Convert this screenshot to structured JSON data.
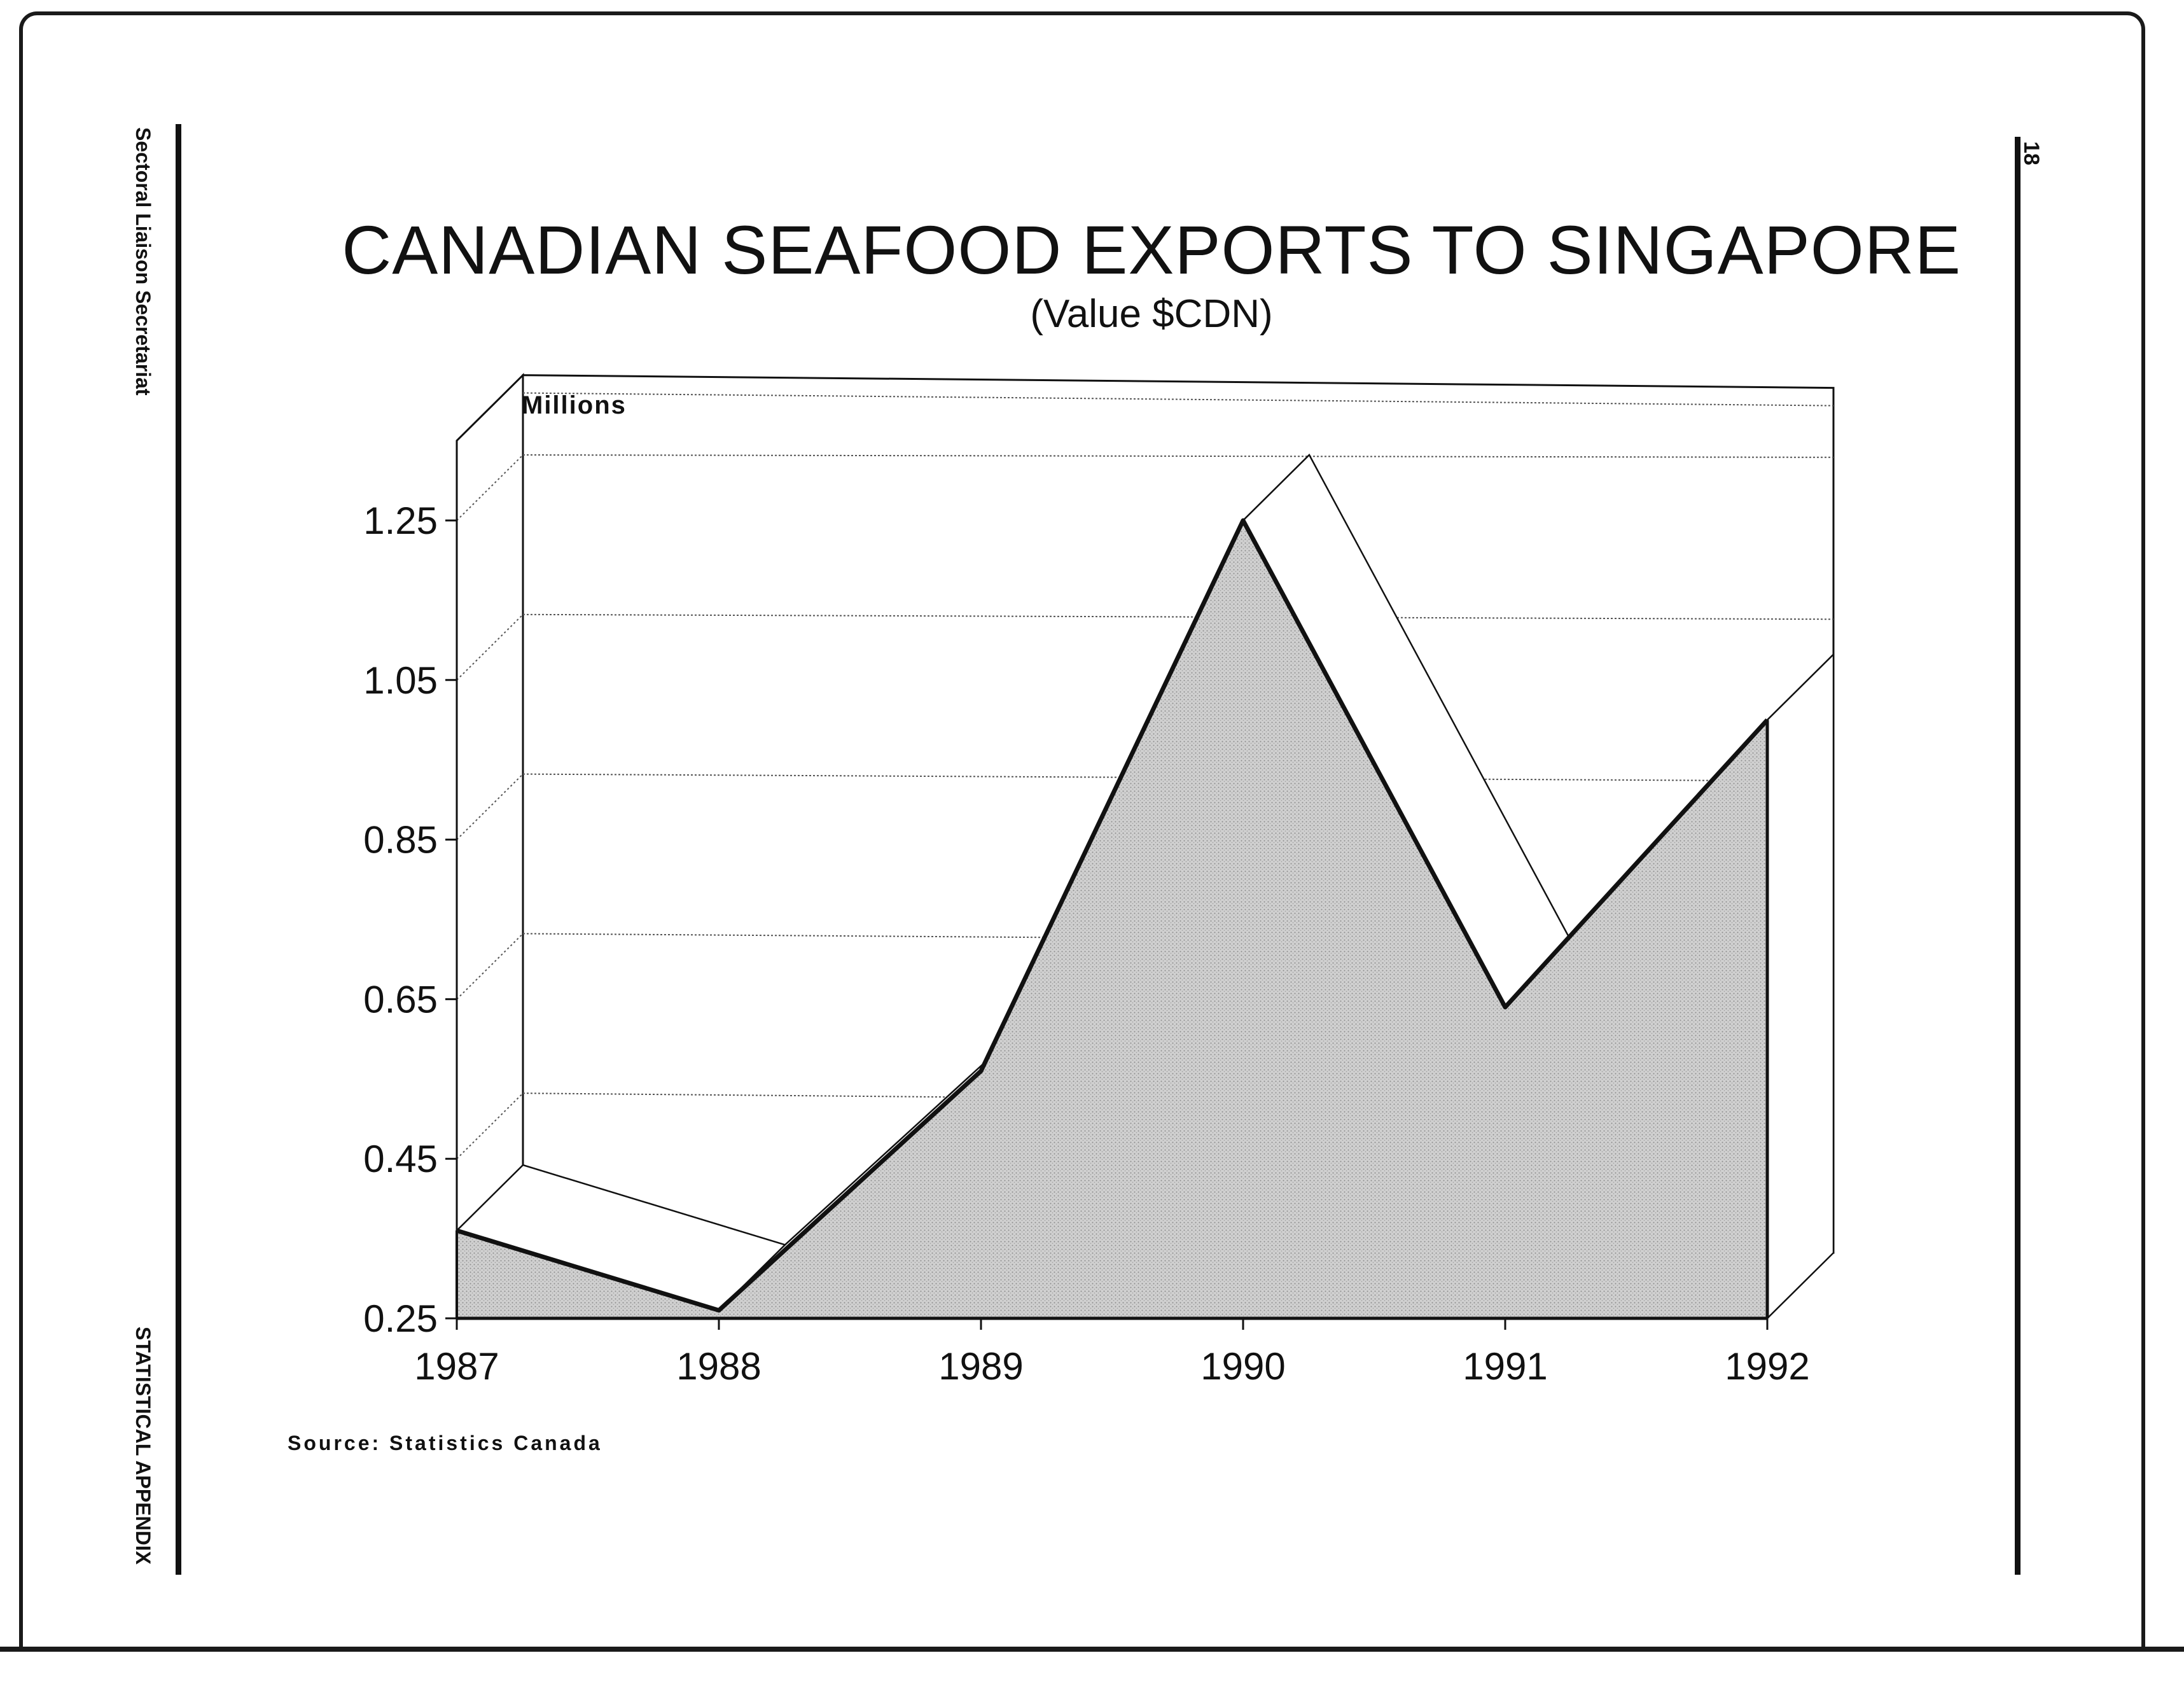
{
  "page": {
    "side_label_top": "Sectoral Liaison Secretariat",
    "side_label_bottom": "STATISTICAL APPENDIX",
    "page_number": "18",
    "source": "Source: Statistics Canada"
  },
  "chart_data": {
    "type": "area",
    "title": "CANADIAN SEAFOOD EXPORTS TO SINGAPORE",
    "subtitle": "(Value $CDN)",
    "ylabel": "Millions",
    "xlabel": "",
    "categories": [
      "1987",
      "1988",
      "1989",
      "1990",
      "1991",
      "1992"
    ],
    "series": [
      {
        "values": [
          0.36,
          0.26,
          0.56,
          1.25,
          0.64,
          1.0
        ]
      }
    ],
    "yticks": [
      "0.25",
      "0.45",
      "0.65",
      "0.85",
      "1.05",
      "1.25"
    ],
    "ylim": [
      0.25,
      1.35
    ],
    "grid": true,
    "three_d": true,
    "colors": {
      "fill": "#c8c8c8",
      "line": "#111111",
      "grid": "#555555"
    }
  }
}
